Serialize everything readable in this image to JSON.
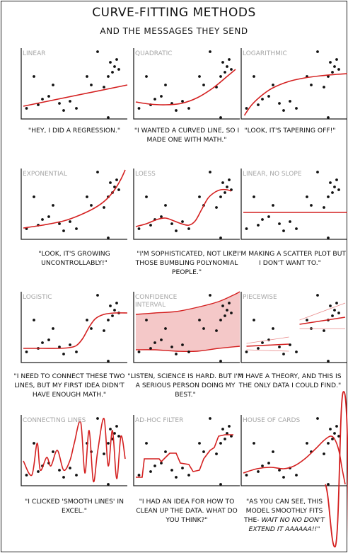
{
  "title": "CURVE-FITTING METHODS",
  "subtitle": "AND THE MESSAGES THEY SEND",
  "points": [
    [
      0.05,
      0.85
    ],
    [
      0.12,
      0.4
    ],
    [
      0.16,
      0.8
    ],
    [
      0.2,
      0.72
    ],
    [
      0.26,
      0.68
    ],
    [
      0.3,
      0.52
    ],
    [
      0.36,
      0.78
    ],
    [
      0.4,
      0.88
    ],
    [
      0.46,
      0.75
    ],
    [
      0.52,
      0.85
    ],
    [
      0.62,
      0.4
    ],
    [
      0.66,
      0.52
    ],
    [
      0.72,
      0.05
    ],
    [
      0.78,
      0.55
    ],
    [
      0.82,
      0.4
    ],
    [
      0.84,
      0.2
    ],
    [
      0.86,
      0.34
    ],
    [
      0.88,
      0.26
    ],
    [
      0.9,
      0.16
    ],
    [
      0.92,
      0.3
    ],
    [
      0.82,
      0.98
    ]
  ],
  "colors": {
    "curve": "#d42020",
    "band": "#f4c8c8",
    "thin": "#e98a8a",
    "axis": "#222",
    "label": "#a6a6a6"
  },
  "panels": [
    {
      "label": "LINEAR",
      "caption": "\"HEY, I DID A REGRESSION.\"",
      "fit": {
        "kind": "line",
        "points": [
          [
            0.02,
            0.82
          ],
          [
            1.0,
            0.52
          ]
        ]
      }
    },
    {
      "label": "QUADRATIC",
      "caption": "\"I WANTED A CURVED LINE, SO I MADE ONE WITH MATH.\"",
      "fit": {
        "kind": "curve",
        "points": [
          [
            0.02,
            0.76
          ],
          [
            0.15,
            0.79
          ],
          [
            0.3,
            0.8
          ],
          [
            0.45,
            0.78
          ],
          [
            0.6,
            0.7
          ],
          [
            0.75,
            0.56
          ],
          [
            0.88,
            0.4
          ],
          [
            0.96,
            0.3
          ]
        ]
      }
    },
    {
      "label": "LOGARITHMIC",
      "caption": "\"LOOK, IT'S TAPERING OFF!\"",
      "fit": {
        "kind": "curve",
        "points": [
          [
            0.03,
            0.95
          ],
          [
            0.1,
            0.8
          ],
          [
            0.2,
            0.66
          ],
          [
            0.3,
            0.56
          ],
          [
            0.45,
            0.47
          ],
          [
            0.6,
            0.42
          ],
          [
            0.75,
            0.39
          ],
          [
            0.9,
            0.37
          ],
          [
            1.0,
            0.36
          ]
        ]
      }
    },
    {
      "label": "EXPONENTIAL",
      "caption": "\"LOOK, IT'S GROWING UNCONTROLLABLY!\"",
      "fit": {
        "kind": "curve",
        "points": [
          [
            0.02,
            0.84
          ],
          [
            0.2,
            0.8
          ],
          [
            0.4,
            0.74
          ],
          [
            0.55,
            0.66
          ],
          [
            0.7,
            0.55
          ],
          [
            0.8,
            0.44
          ],
          [
            0.88,
            0.3
          ],
          [
            0.94,
            0.15
          ],
          [
            0.98,
            0.02
          ]
        ]
      }
    },
    {
      "label": "LOESS",
      "caption": "\"I'M SOPHISTICATED, NOT LIKE THOSE BUMBLING POLYNOMIAL PEOPLE.\"",
      "fit": {
        "kind": "curve",
        "points": [
          [
            0.02,
            0.82
          ],
          [
            0.12,
            0.78
          ],
          [
            0.22,
            0.72
          ],
          [
            0.3,
            0.7
          ],
          [
            0.38,
            0.74
          ],
          [
            0.45,
            0.78
          ],
          [
            0.52,
            0.8
          ],
          [
            0.58,
            0.74
          ],
          [
            0.64,
            0.58
          ],
          [
            0.7,
            0.42
          ],
          [
            0.76,
            0.34
          ],
          [
            0.82,
            0.3
          ],
          [
            0.88,
            0.3
          ],
          [
            0.92,
            0.32
          ]
        ]
      }
    },
    {
      "label": "LINEAR, NO SLOPE",
      "caption": "\"I'M MAKING A SCATTER PLOT BUT I DON'T WANT TO.\"",
      "fit": {
        "kind": "line",
        "points": [
          [
            0.02,
            0.62
          ],
          [
            1.0,
            0.62
          ]
        ]
      }
    },
    {
      "label": "LOGISTIC",
      "caption": "\"I NEED TO CONNECT THESE TWO LINES, BUT MY FIRST IDEA DIDN'T HAVE ENOUGH MATH.\"",
      "fit": {
        "kind": "curve",
        "points": [
          [
            0.02,
            0.8
          ],
          [
            0.2,
            0.8
          ],
          [
            0.35,
            0.8
          ],
          [
            0.45,
            0.79
          ],
          [
            0.52,
            0.76
          ],
          [
            0.58,
            0.66
          ],
          [
            0.64,
            0.5
          ],
          [
            0.7,
            0.38
          ],
          [
            0.78,
            0.32
          ],
          [
            0.88,
            0.3
          ],
          [
            1.0,
            0.3
          ]
        ]
      }
    },
    {
      "label": "CONFIDENCE INTERVAL",
      "caption": "\"LISTEN, SCIENCE IS HARD. BUT I'M A SERIOUS PERSON DOING MY BEST.\"",
      "fit": {
        "kind": "band",
        "upper": [
          [
            0.02,
            0.32
          ],
          [
            0.2,
            0.3
          ],
          [
            0.4,
            0.28
          ],
          [
            0.6,
            0.22
          ],
          [
            0.8,
            0.14
          ],
          [
            0.95,
            0.04
          ],
          [
            1.0,
            0.0
          ]
        ],
        "lower": [
          [
            0.02,
            0.82
          ],
          [
            0.2,
            0.82
          ],
          [
            0.4,
            0.84
          ],
          [
            0.6,
            0.84
          ],
          [
            0.8,
            0.8
          ],
          [
            1.0,
            0.77
          ]
        ]
      }
    },
    {
      "label": "PIECEWISE",
      "caption": "\"I HAVE A THEORY, AND THIS IS THE ONLY DATA I COULD FIND.\"",
      "fit": {
        "kind": "piecewise",
        "a": [
          [
            0.05,
            0.77
          ],
          [
            0.45,
            0.74
          ]
        ],
        "b": [
          [
            0.55,
            0.46
          ],
          [
            0.98,
            0.36
          ]
        ],
        "thin": [
          [
            [
              0.05,
              0.73
            ],
            [
              0.45,
              0.64
            ]
          ],
          [
            [
              0.05,
              0.82
            ],
            [
              0.45,
              0.84
            ]
          ],
          [
            [
              0.55,
              0.4
            ],
            [
              0.98,
              0.16
            ]
          ],
          [
            [
              0.55,
              0.52
            ],
            [
              0.98,
              0.52
            ]
          ]
        ]
      }
    },
    {
      "label": "CONNECTING LINES",
      "caption": "\"I CLICKED 'SMOOTH LINES' IN EXCEL.\"",
      "fit": {
        "kind": "curve",
        "points": [
          [
            0.02,
            0.65
          ],
          [
            0.1,
            0.85
          ],
          [
            0.15,
            0.4
          ],
          [
            0.18,
            0.78
          ],
          [
            0.24,
            0.6
          ],
          [
            0.28,
            0.72
          ],
          [
            0.34,
            0.5
          ],
          [
            0.4,
            0.78
          ],
          [
            0.46,
            0.64
          ],
          [
            0.5,
            0.4
          ],
          [
            0.56,
            0.1
          ],
          [
            0.6,
            0.82
          ],
          [
            0.64,
            0.22
          ],
          [
            0.68,
            0.94
          ],
          [
            0.72,
            0.52
          ],
          [
            0.78,
            0.05
          ],
          [
            0.82,
            0.72
          ],
          [
            0.86,
            0.22
          ],
          [
            0.9,
            0.9
          ],
          [
            0.94,
            0.3
          ],
          [
            0.98,
            0.62
          ]
        ]
      }
    },
    {
      "label": "AD-HOC FILTER",
      "caption": "\"I HAD AN IDEA FOR HOW TO CLEAN UP THE DATA. WHAT DO YOU THINK?\"",
      "fit": {
        "kind": "step",
        "points": [
          [
            0.02,
            0.88
          ],
          [
            0.08,
            0.88
          ],
          [
            0.1,
            0.62
          ],
          [
            0.24,
            0.62
          ],
          [
            0.26,
            0.66
          ],
          [
            0.3,
            0.6
          ],
          [
            0.34,
            0.54
          ],
          [
            0.4,
            0.54
          ],
          [
            0.44,
            0.68
          ],
          [
            0.52,
            0.7
          ],
          [
            0.56,
            0.8
          ],
          [
            0.62,
            0.78
          ],
          [
            0.66,
            0.62
          ],
          [
            0.72,
            0.5
          ],
          [
            0.76,
            0.46
          ],
          [
            0.8,
            0.3
          ],
          [
            0.86,
            0.28
          ],
          [
            0.94,
            0.28
          ]
        ]
      }
    },
    {
      "label": "HOUSE OF CARDS",
      "caption": "\"AS YOU CAN SEE, THIS MODEL SMOOTHLY FITS THE-",
      "caption_tail": "WAIT NO NO DON'T EXTEND IT AAAAAA!!\"",
      "fit": {
        "kind": "house"
      }
    }
  ]
}
